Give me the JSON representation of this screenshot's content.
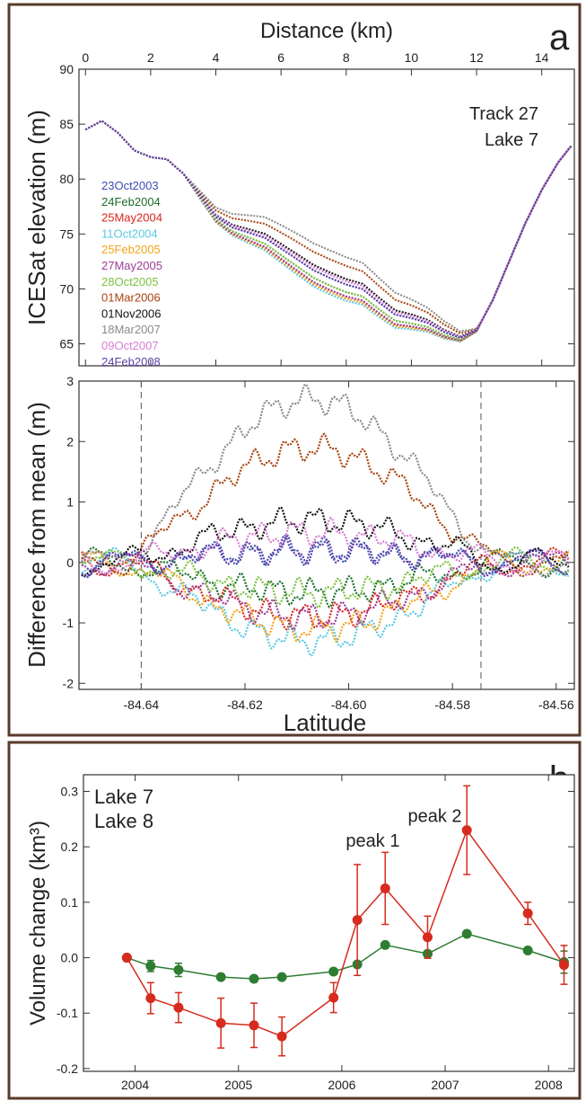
{
  "colors": {
    "frame": "#5a3a2a",
    "axis": "#333333",
    "lake7": "#d62b1e",
    "lake8": "#2e7d32"
  },
  "chart_data": [
    {
      "panel": "a",
      "type": "line",
      "title": "",
      "annotation_lines": [
        "Track 27",
        "Lake 7"
      ],
      "xlabel": "Distance (km)",
      "ylabel": "ICESat elevation (m)",
      "xticks": [
        0,
        2,
        4,
        6,
        8,
        10,
        12,
        14
      ],
      "yticks": [
        65,
        70,
        75,
        80,
        85,
        90
      ],
      "xlim": [
        -0.2,
        15.0
      ],
      "ylim": [
        63,
        90
      ],
      "series": [
        {
          "name": "23Oct2003",
          "color": "#3c4fb4",
          "offset": 0.2
        },
        {
          "name": "24Feb2004",
          "color": "#1b6e2a",
          "offset": -0.5
        },
        {
          "name": "25May2004",
          "color": "#d8261e",
          "offset": -0.9
        },
        {
          "name": "11Oct2004",
          "color": "#5ac8e0",
          "offset": -1.3
        },
        {
          "name": "25Feb2005",
          "color": "#f2a31b",
          "offset": -1.1
        },
        {
          "name": "27May2005",
          "color": "#9c3c96",
          "offset": -0.9
        },
        {
          "name": "28Oct2005",
          "color": "#7cc242",
          "offset": -0.5
        },
        {
          "name": "01Mar2006",
          "color": "#a8430e",
          "offset": 1.9
        },
        {
          "name": "01Nov2006",
          "color": "#111111",
          "offset": 0.7
        },
        {
          "name": "18Mar2007",
          "color": "#8a8a8a",
          "offset": 2.7
        },
        {
          "name": "09Oct2007",
          "color": "#d77ed2",
          "offset": 0.5
        },
        {
          "name": "24Feb2008",
          "color": "#5b3fa6",
          "offset": 0.2
        }
      ],
      "mean_profile": {
        "x": [
          0,
          0.5,
          1.0,
          1.5,
          2.0,
          2.5,
          3.0,
          3.5,
          4.0,
          4.5,
          5.0,
          5.5,
          6.0,
          6.5,
          7.0,
          7.5,
          8.0,
          8.5,
          9.0,
          9.5,
          10.0,
          10.5,
          11.0,
          11.5,
          12.0,
          12.5,
          13.0,
          13.5,
          14.0,
          14.5,
          14.9
        ],
        "y": [
          84.5,
          85.3,
          84.2,
          82.6,
          82.0,
          81.8,
          80.5,
          78.5,
          76.5,
          75.5,
          75.0,
          74.5,
          73.5,
          72.5,
          71.5,
          70.8,
          70.2,
          69.8,
          68.6,
          67.5,
          67.2,
          66.8,
          66.0,
          65.5,
          66.2,
          69.0,
          72.5,
          76.0,
          79.0,
          81.5,
          83.0
        ]
      }
    },
    {
      "panel": "a",
      "type": "line",
      "xlabel": "Latitude",
      "ylabel": "Difference from mean (m)",
      "xticks": [
        -84.64,
        -84.62,
        -84.6,
        -84.58,
        -84.56
      ],
      "xtick_labels": [
        "-84.64",
        "-84.62",
        "-84.60",
        "-84.58",
        "-84.56"
      ],
      "yticks": [
        -2,
        -1,
        0,
        1,
        2,
        3
      ],
      "xlim": [
        -84.652,
        -84.5565
      ],
      "ylim": [
        -2.1,
        3.0
      ],
      "dashed_vlines": [
        -84.64,
        -84.5745
      ],
      "lake_bounds": [
        -84.64,
        -84.5745
      ]
    },
    {
      "panel": "b",
      "type": "line",
      "xlabel": "",
      "ylabel": "Volume change (km³)",
      "xticks": [
        2004,
        2005,
        2006,
        2007,
        2008
      ],
      "yticks": [
        -0.2,
        -0.1,
        0.0,
        0.1,
        0.2,
        0.3
      ],
      "ytick_labels": [
        "-0.2",
        "-0.1",
        "0.0",
        "0.1",
        "0.2",
        "0.3"
      ],
      "xlim": [
        2003.5,
        2008.25
      ],
      "ylim": [
        -0.205,
        0.33
      ],
      "annotations": [
        {
          "text": "peak 1",
          "x": 2006.3,
          "y": 0.2
        },
        {
          "text": "peak 2",
          "x": 2006.9,
          "y": 0.245
        }
      ],
      "series": [
        {
          "name": "Lake 7",
          "color": "#d62b1e",
          "x": [
            2003.92,
            2004.15,
            2004.42,
            2004.83,
            2005.15,
            2005.42,
            2005.92,
            2006.15,
            2006.42,
            2006.83,
            2007.21,
            2007.8,
            2008.15
          ],
          "y": [
            0.0,
            -0.073,
            -0.09,
            -0.118,
            -0.122,
            -0.142,
            -0.072,
            0.068,
            0.125,
            0.037,
            0.23,
            0.08,
            -0.013
          ],
          "err": [
            0,
            0.028,
            0.027,
            0.045,
            0.04,
            0.035,
            0.027,
            0.1,
            0.065,
            0.038,
            0.08,
            0.02,
            0.035
          ]
        },
        {
          "name": "Lake 8",
          "color": "#2e7d32",
          "x": [
            2003.92,
            2004.15,
            2004.42,
            2004.83,
            2005.15,
            2005.42,
            2005.92,
            2006.15,
            2006.42,
            2006.83,
            2007.21,
            2007.8,
            2008.15
          ],
          "y": [
            0.0,
            -0.015,
            -0.022,
            -0.035,
            -0.038,
            -0.035,
            -0.025,
            -0.012,
            0.023,
            0.007,
            0.043,
            0.013,
            -0.008
          ],
          "err": [
            0,
            0.01,
            0.012,
            0.0,
            0.0,
            0.0,
            0.0,
            0.0,
            0.0,
            0.0,
            0.0,
            0.0,
            0.02
          ]
        }
      ]
    }
  ],
  "panel_labels": [
    "a",
    "b"
  ]
}
